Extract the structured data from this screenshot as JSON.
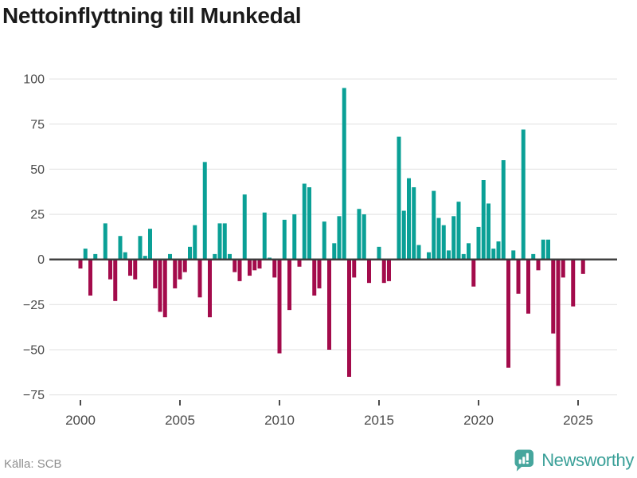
{
  "title": "Nettoinflyttning till Munkedal",
  "footer": {
    "source": "Källa: SCB",
    "brand": "Newsworthy"
  },
  "colors": {
    "positive": "#0aa096",
    "negative": "#a30b4b",
    "grid": "#e7e7e7",
    "zero_line": "#3b3b3b",
    "axis_text": "#4b4b4b",
    "title_text": "#1a1a1a",
    "source_text": "#8f8f8f",
    "brand_teal": "#3aa098",
    "brand_badge": "#46a69d"
  },
  "chart_data": {
    "type": "bar",
    "title": "Nettoinflyttning till Munkedal",
    "xlabel": "",
    "ylabel": "",
    "legend": "none",
    "grid": "horizontal",
    "ylim": [
      -80,
      105
    ],
    "x_tick_labels": [
      "2000",
      "2005",
      "2010",
      "2015",
      "2020",
      "2025"
    ],
    "y_tick_values": [
      100,
      75,
      50,
      25,
      0,
      -25,
      -50,
      -75
    ],
    "y_tick_labels": [
      "100",
      "75",
      "50",
      "25",
      "0",
      "−25",
      "−50",
      "−75"
    ],
    "categories": [
      "2000 Q1",
      "2000 Q2",
      "2000 Q3",
      "2000 Q4",
      "2001 Q1",
      "2001 Q2",
      "2001 Q3",
      "2001 Q4",
      "2002 Q1",
      "2002 Q2",
      "2002 Q3",
      "2002 Q4",
      "2003 Q1",
      "2003 Q2",
      "2003 Q3",
      "2003 Q4",
      "2004 Q1",
      "2004 Q2",
      "2004 Q3",
      "2004 Q4",
      "2005 Q1",
      "2005 Q2",
      "2005 Q3",
      "2005 Q4",
      "2006 Q1",
      "2006 Q2",
      "2006 Q3",
      "2006 Q4",
      "2007 Q1",
      "2007 Q2",
      "2007 Q3",
      "2007 Q4",
      "2008 Q1",
      "2008 Q2",
      "2008 Q3",
      "2008 Q4",
      "2009 Q1",
      "2009 Q2",
      "2009 Q3",
      "2009 Q4",
      "2010 Q1",
      "2010 Q2",
      "2010 Q3",
      "2010 Q4",
      "2011 Q1",
      "2011 Q2",
      "2011 Q3",
      "2011 Q4",
      "2012 Q1",
      "2012 Q2",
      "2012 Q3",
      "2012 Q4",
      "2013 Q1",
      "2013 Q2",
      "2013 Q3",
      "2013 Q4",
      "2014 Q1",
      "2014 Q2",
      "2014 Q3",
      "2014 Q4",
      "2015 Q1",
      "2015 Q2",
      "2015 Q3",
      "2015 Q4",
      "2016 Q1",
      "2016 Q2",
      "2016 Q3",
      "2016 Q4",
      "2017 Q1",
      "2017 Q2",
      "2017 Q3",
      "2017 Q4",
      "2018 Q1",
      "2018 Q2",
      "2018 Q3",
      "2018 Q4",
      "2019 Q1",
      "2019 Q2",
      "2019 Q3",
      "2019 Q4",
      "2020 Q1",
      "2020 Q2",
      "2020 Q3",
      "2020 Q4",
      "2021 Q1",
      "2021 Q2",
      "2021 Q3",
      "2021 Q4",
      "2022 Q1",
      "2022 Q2",
      "2022 Q3",
      "2022 Q4",
      "2023 Q1",
      "2023 Q2",
      "2023 Q3",
      "2023 Q4",
      "2024 Q1",
      "2024 Q2",
      "2024 Q3",
      "2024 Q4",
      "2025 Q1",
      "2025 Q2"
    ],
    "values": [
      -5,
      6,
      -20,
      3,
      0,
      20,
      -11,
      -23,
      13,
      4,
      -9,
      -11,
      13,
      2,
      17,
      -16,
      -29,
      -32,
      3,
      -16,
      -11,
      -7,
      7,
      19,
      -21,
      54,
      -32,
      3,
      20,
      20,
      3,
      -7,
      -12,
      36,
      -9,
      -6,
      -5,
      26,
      1,
      -10,
      -52,
      22,
      -28,
      25,
      -4,
      42,
      40,
      -20,
      -16,
      21,
      -50,
      9,
      24,
      95,
      -65,
      -10,
      28,
      25,
      -13,
      0,
      7,
      -13,
      -12,
      0,
      68,
      27,
      45,
      40,
      8,
      0,
      4,
      38,
      23,
      19,
      5,
      24,
      32,
      3,
      9,
      -15,
      18,
      44,
      31,
      6,
      10,
      55,
      -60,
      5,
      -19,
      72,
      -30,
      3,
      -6,
      11,
      11,
      -41,
      -70,
      -10,
      0,
      -26,
      0,
      -8
    ]
  }
}
